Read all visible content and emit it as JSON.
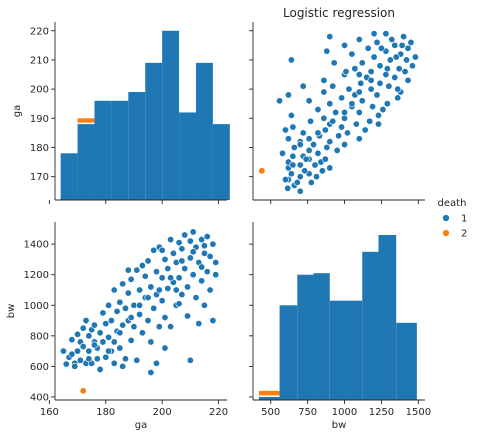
{
  "chart_data": {
    "type": "pairplot",
    "title": "Logistic regression",
    "variables": [
      "ga",
      "bw"
    ],
    "hue": {
      "title": "death",
      "levels": [
        "1",
        "2"
      ],
      "colors": [
        "#1f77b4",
        "#ff7f0e"
      ]
    },
    "axes": {
      "ga": {
        "label": "ga",
        "range": [
          162,
          223
        ],
        "ticks": [
          160,
          180,
          200,
          220
        ],
        "hist_yticks": [
          170,
          180,
          190,
          200,
          210,
          220
        ],
        "hist_yrange": [
          162,
          223
        ]
      },
      "bw": {
        "label": "bw",
        "range": [
          380,
          1545
        ],
        "ticks": [
          400,
          600,
          800,
          1000,
          1200,
          1400
        ],
        "xticks": [
          500,
          750,
          1000,
          1250,
          1500
        ]
      }
    },
    "hist_ga": {
      "edges": [
        164,
        170,
        176,
        182,
        188,
        194,
        200,
        206,
        212,
        218
      ],
      "series1_tops": [
        178,
        188,
        196,
        196,
        199,
        209,
        220,
        192,
        209,
        188
      ],
      "series2_tops": [
        0,
        190,
        0,
        0,
        0,
        0,
        0,
        0,
        0,
        0
      ],
      "series2_bottom": 188.5
    },
    "hist_bw": {
      "edges": [
        420,
        560,
        680,
        790,
        900,
        1010,
        1120,
        1230,
        1350,
        1490
      ],
      "series1_tops": [
        400,
        1000,
        1200,
        1210,
        1030,
        1030,
        1350,
        1460,
        885
      ],
      "series2_tops": [
        440,
        0,
        0,
        0,
        0,
        0,
        0,
        0,
        0
      ],
      "series2_bottom": 410
    },
    "scatter": {
      "series1": [
        [
          165,
          700
        ],
        [
          166,
          615
        ],
        [
          167,
          660
        ],
        [
          168,
          680
        ],
        [
          168,
          775
        ],
        [
          169,
          620
        ],
        [
          170,
          700
        ],
        [
          170,
          810
        ],
        [
          171,
          760
        ],
        [
          171,
          640
        ],
        [
          172,
          850
        ],
        [
          172,
          730
        ],
        [
          173,
          620
        ],
        [
          173,
          900
        ],
        [
          174,
          800
        ],
        [
          174,
          700
        ],
        [
          175,
          840
        ],
        [
          175,
          620
        ],
        [
          176,
          760
        ],
        [
          176,
          870
        ],
        [
          177,
          650
        ],
        [
          177,
          720
        ],
        [
          178,
          820
        ],
        [
          178,
          580
        ],
        [
          179,
          950
        ],
        [
          179,
          760
        ],
        [
          180,
          880
        ],
        [
          180,
          660
        ],
        [
          181,
          1000
        ],
        [
          181,
          790
        ],
        [
          182,
          700
        ],
        [
          182,
          900
        ],
        [
          183,
          1100
        ],
        [
          183,
          620
        ],
        [
          184,
          830
        ],
        [
          184,
          960
        ],
        [
          185,
          1020
        ],
        [
          185,
          720
        ],
        [
          186,
          870
        ],
        [
          186,
          1140
        ],
        [
          187,
          980
        ],
        [
          187,
          650
        ],
        [
          188,
          900
        ],
        [
          188,
          1080
        ],
        [
          189,
          1170
        ],
        [
          189,
          770
        ],
        [
          190,
          1000
        ],
        [
          190,
          860
        ],
        [
          191,
          1230
        ],
        [
          191,
          640
        ],
        [
          192,
          1100
        ],
        [
          192,
          940
        ],
        [
          193,
          1260
        ],
        [
          193,
          820
        ],
        [
          194,
          1050
        ],
        [
          194,
          1190
        ],
        [
          195,
          900
        ],
        [
          195,
          1290
        ],
        [
          196,
          1120
        ],
        [
          196,
          760
        ],
        [
          197,
          1360
        ],
        [
          197,
          980
        ],
        [
          198,
          1070
        ],
        [
          198,
          1220
        ],
        [
          199,
          860
        ],
        [
          199,
          1380
        ],
        [
          200,
          1180
        ],
        [
          200,
          1030
        ],
        [
          201,
          1300
        ],
        [
          201,
          920
        ],
        [
          202,
          1240
        ],
        [
          202,
          1110
        ],
        [
          203,
          1430
        ],
        [
          203,
          860
        ],
        [
          204,
          1150
        ],
        [
          204,
          1340
        ],
        [
          205,
          1000
        ],
        [
          205,
          1280
        ],
        [
          206,
          1410
        ],
        [
          206,
          1180
        ],
        [
          207,
          1070
        ],
        [
          207,
          1370
        ],
        [
          208,
          1460
        ],
        [
          208,
          1240
        ],
        [
          209,
          1120
        ],
        [
          209,
          930
        ],
        [
          210,
          1310
        ],
        [
          210,
          1420
        ],
        [
          211,
          1200
        ],
        [
          211,
          1480
        ],
        [
          212,
          1380
        ],
        [
          212,
          1050
        ],
        [
          213,
          1280
        ],
        [
          213,
          880
        ],
        [
          214,
          1430
        ],
        [
          214,
          1160
        ],
        [
          215,
          1340
        ],
        [
          215,
          1000
        ],
        [
          216,
          1450
        ],
        [
          216,
          1220
        ],
        [
          217,
          1100
        ],
        [
          217,
          1320
        ],
        [
          218,
          900
        ],
        [
          218,
          1400
        ],
        [
          219,
          1280
        ],
        [
          219,
          1200
        ],
        [
          198,
          620
        ],
        [
          196,
          560
        ],
        [
          201,
          720
        ],
        [
          210,
          640
        ],
        [
          186,
          600
        ],
        [
          183,
          760
        ],
        [
          192,
          1000
        ],
        [
          205,
          1100
        ],
        [
          188,
          1230
        ],
        [
          195,
          1050
        ],
        [
          200,
          1360
        ],
        [
          207,
          1290
        ],
        [
          203,
          1180
        ],
        [
          214,
          1250
        ],
        [
          169,
          600
        ],
        [
          176,
          740
        ],
        [
          181,
          700
        ],
        [
          189,
          920
        ],
        [
          199,
          1100
        ],
        [
          206,
          1010
        ],
        [
          211,
          1350
        ],
        [
          215,
          1390
        ],
        [
          174,
          650
        ],
        [
          185,
          820
        ]
      ],
      "series2": [
        [
          172,
          440
        ]
      ]
    }
  }
}
